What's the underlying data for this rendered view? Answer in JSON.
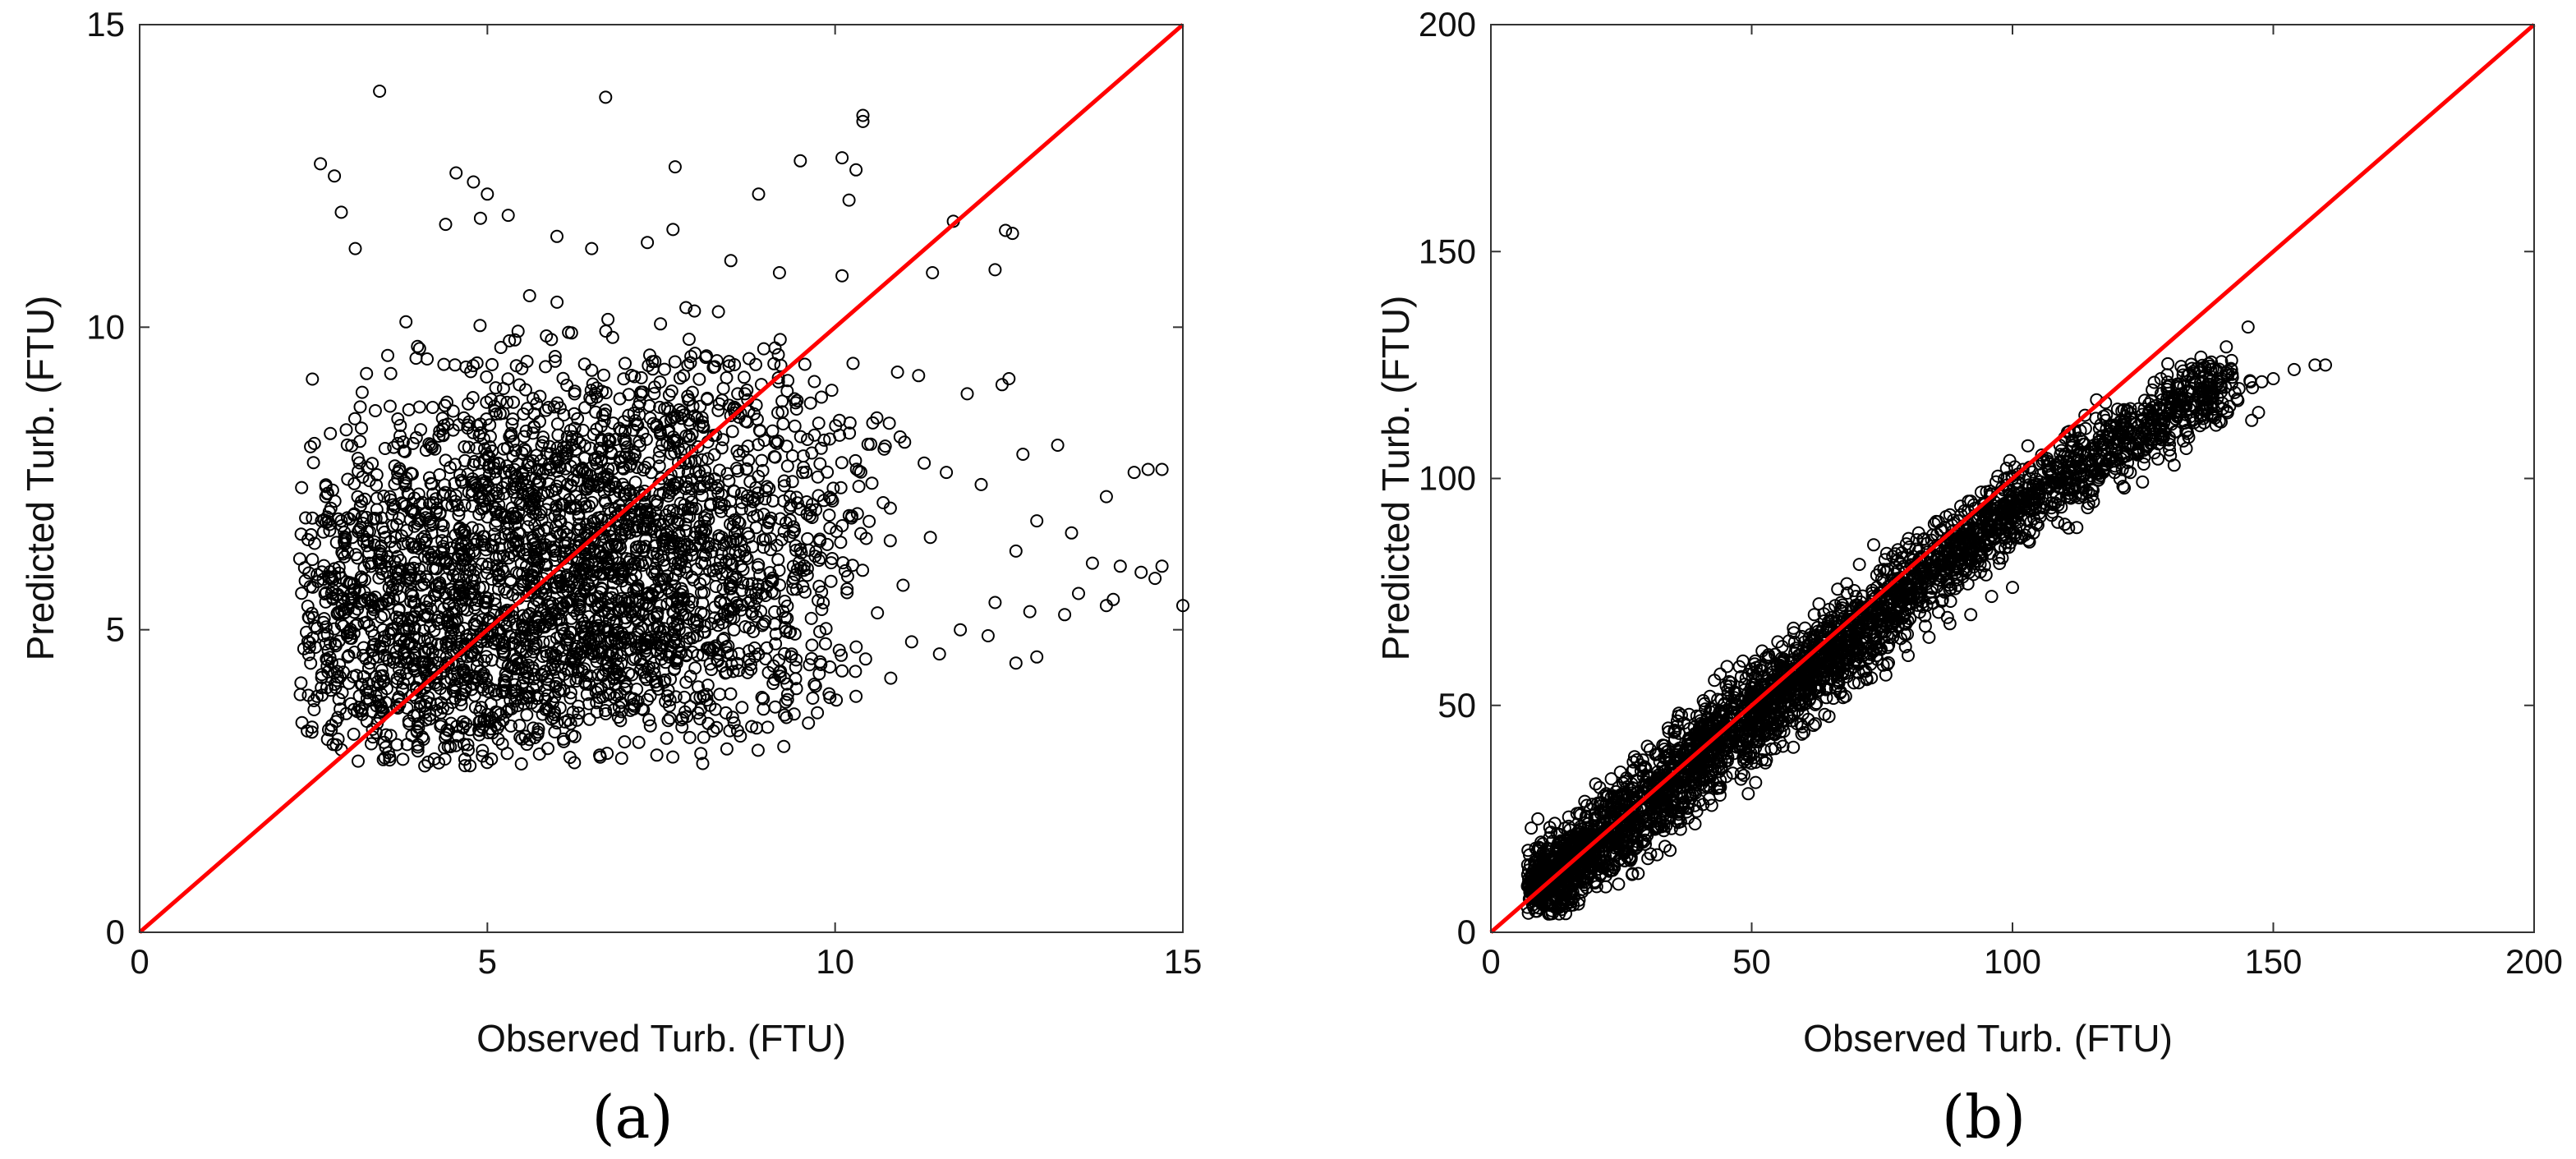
{
  "chart_data": [
    {
      "type": "scatter",
      "panel_label": "(a)",
      "xlabel": "Observed Turb. (FTU)",
      "ylabel": "Predicted Turb. (FTU)",
      "xlim": [
        0,
        15
      ],
      "ylim": [
        0,
        15
      ],
      "xticks": [
        0,
        5,
        10,
        15
      ],
      "yticks": [
        0,
        5,
        10,
        15
      ],
      "grid": false,
      "marker": "open-circle",
      "marker_color": "#000000",
      "reference_line": {
        "x": [
          0,
          15
        ],
        "y": [
          0,
          15
        ],
        "color": "#ff0000"
      },
      "series": [
        {
          "values_description_free": true,
          "core_points": [
            [
              2.5,
              5.2
            ],
            [
              2.7,
              4.5
            ],
            [
              2.9,
              6.8
            ],
            [
              3.0,
              5.5
            ],
            [
              3.2,
              4.1
            ],
            [
              3.3,
              6.1
            ],
            [
              3.5,
              5.0
            ],
            [
              3.6,
              7.2
            ],
            [
              3.8,
              4.6
            ],
            [
              3.9,
              5.9
            ],
            [
              4.0,
              3.1
            ],
            [
              4.1,
              4.3
            ],
            [
              4.2,
              6.6
            ],
            [
              4.3,
              5.1
            ],
            [
              4.4,
              7.8
            ],
            [
              4.5,
              3.8
            ],
            [
              4.6,
              5.6
            ],
            [
              4.7,
              4.9
            ],
            [
              4.8,
              6.3
            ],
            [
              4.9,
              8.4
            ],
            [
              5.0,
              3.5
            ],
            [
              5.1,
              5.3
            ],
            [
              5.2,
              6.9
            ],
            [
              5.3,
              4.4
            ],
            [
              5.4,
              7.4
            ],
            [
              5.5,
              5.8
            ],
            [
              5.6,
              3.9
            ],
            [
              5.7,
              6.2
            ],
            [
              5.8,
              8.1
            ],
            [
              5.9,
              4.8
            ],
            [
              6.0,
              6.6
            ],
            [
              6.1,
              5.4
            ],
            [
              6.2,
              7.7
            ],
            [
              6.3,
              4.2
            ],
            [
              6.4,
              6.0
            ],
            [
              6.5,
              8.8
            ],
            [
              6.6,
              5.0
            ],
            [
              6.7,
              7.1
            ],
            [
              6.8,
              4.6
            ],
            [
              6.9,
              6.4
            ],
            [
              7.0,
              5.7
            ],
            [
              7.1,
              8.3
            ],
            [
              7.2,
              4.5
            ],
            [
              7.3,
              6.8
            ],
            [
              7.4,
              5.2
            ],
            [
              7.5,
              7.5
            ],
            [
              7.6,
              4.0
            ],
            [
              7.7,
              6.1
            ],
            [
              7.8,
              8.6
            ],
            [
              7.9,
              5.5
            ],
            [
              8.0,
              7.0
            ],
            [
              8.2,
              4.7
            ],
            [
              8.4,
              6.4
            ],
            [
              8.6,
              8.9
            ],
            [
              8.8,
              5.3
            ],
            [
              9.0,
              7.3
            ],
            [
              9.2,
              4.3
            ],
            [
              9.4,
              6.7
            ],
            [
              9.6,
              5.9
            ],
            [
              9.8,
              8.0
            ]
          ],
          "outlier_points": [
            [
              3.45,
              13.9
            ],
            [
              6.7,
              13.8
            ],
            [
              10.4,
              13.5
            ],
            [
              10.4,
              13.4
            ],
            [
              2.6,
              12.7
            ],
            [
              2.8,
              12.5
            ],
            [
              4.55,
              12.55
            ],
            [
              7.7,
              12.65
            ],
            [
              9.5,
              12.75
            ],
            [
              10.1,
              12.8
            ],
            [
              10.3,
              12.6
            ],
            [
              4.8,
              12.4
            ],
            [
              5.0,
              12.2
            ],
            [
              8.9,
              12.2
            ],
            [
              10.2,
              12.1
            ],
            [
              2.9,
              11.9
            ],
            [
              3.1,
              11.3
            ],
            [
              4.4,
              11.7
            ],
            [
              4.9,
              11.8
            ],
            [
              5.3,
              11.85
            ],
            [
              6.0,
              11.5
            ],
            [
              6.5,
              11.3
            ],
            [
              7.3,
              11.4
            ],
            [
              8.5,
              11.1
            ],
            [
              9.2,
              10.9
            ],
            [
              11.7,
              11.75
            ],
            [
              12.45,
              11.6
            ],
            [
              12.55,
              11.55
            ],
            [
              12.3,
              10.95
            ],
            [
              11.4,
              10.9
            ],
            [
              10.1,
              10.85
            ],
            [
              12.5,
              9.15
            ],
            [
              12.4,
              9.05
            ],
            [
              11.9,
              8.9
            ],
            [
              11.2,
              9.2
            ],
            [
              10.6,
              8.5
            ],
            [
              11.0,
              8.1
            ],
            [
              13.2,
              8.05
            ],
            [
              12.7,
              7.9
            ],
            [
              14.3,
              7.6
            ],
            [
              14.5,
              7.65
            ],
            [
              14.7,
              7.65
            ],
            [
              13.9,
              7.2
            ],
            [
              11.6,
              7.6
            ],
            [
              12.1,
              7.4
            ],
            [
              12.9,
              6.8
            ],
            [
              13.4,
              6.6
            ],
            [
              12.6,
              6.3
            ],
            [
              13.7,
              6.1
            ],
            [
              14.1,
              6.05
            ],
            [
              14.4,
              5.95
            ],
            [
              14.7,
              6.05
            ],
            [
              13.5,
              5.6
            ],
            [
              14.0,
              5.5
            ],
            [
              14.6,
              5.85
            ],
            [
              15.0,
              5.4
            ],
            [
              12.3,
              5.45
            ],
            [
              12.8,
              5.3
            ],
            [
              13.3,
              5.25
            ],
            [
              13.9,
              5.4
            ],
            [
              11.8,
              5.0
            ],
            [
              12.2,
              4.9
            ],
            [
              12.6,
              4.45
            ],
            [
              12.9,
              4.55
            ],
            [
              11.5,
              4.6
            ],
            [
              11.1,
              4.8
            ],
            [
              10.8,
              4.2
            ],
            [
              10.3,
              3.9
            ],
            [
              9.7,
              4.1
            ],
            [
              9.3,
              3.55
            ],
            [
              8.8,
              3.4
            ],
            [
              8.2,
              3.75
            ],
            [
              7.6,
              3.5
            ],
            [
              4.1,
              2.75
            ],
            [
              4.3,
              2.8
            ],
            [
              3.7,
              3.1
            ],
            [
              3.4,
              3.3
            ],
            [
              3.2,
              3.6
            ],
            [
              2.85,
              3.55
            ],
            [
              2.75,
              4.0
            ]
          ]
        }
      ]
    },
    {
      "type": "scatter",
      "panel_label": "(b)",
      "xlabel": "Observed Turb. (FTU)",
      "ylabel": "Predicted Turb. (FTU)",
      "xlim": [
        0,
        200
      ],
      "ylim": [
        0,
        200
      ],
      "xticks": [
        0,
        50,
        100,
        150,
        200
      ],
      "yticks": [
        0,
        50,
        100,
        150,
        200
      ],
      "grid": false,
      "marker": "open-circle",
      "marker_color": "#000000",
      "reference_line": {
        "x": [
          0,
          200
        ],
        "y": [
          0,
          200
        ],
        "color": "#ff0000"
      },
      "series": [
        {
          "values_description_free": true,
          "core_points": [
            [
              8,
              6
            ],
            [
              9,
              9
            ],
            [
              10,
              8
            ],
            [
              11,
              12
            ],
            [
              12,
              10
            ],
            [
              14,
              13
            ],
            [
              15,
              16
            ],
            [
              17,
              15
            ],
            [
              18,
              19
            ],
            [
              20,
              18
            ],
            [
              22,
              22
            ],
            [
              24,
              21
            ],
            [
              26,
              26
            ],
            [
              28,
              25
            ],
            [
              30,
              30
            ],
            [
              32,
              29
            ],
            [
              34,
              34
            ],
            [
              36,
              33
            ],
            [
              38,
              38
            ],
            [
              40,
              37
            ],
            [
              42,
              42
            ],
            [
              44,
              41
            ],
            [
              46,
              46
            ],
            [
              48,
              44
            ],
            [
              50,
              50
            ],
            [
              52,
              48
            ],
            [
              54,
              53
            ],
            [
              56,
              52
            ],
            [
              58,
              57
            ],
            [
              60,
              55
            ],
            [
              62,
              60
            ],
            [
              64,
              59
            ],
            [
              66,
              63
            ],
            [
              68,
              62
            ],
            [
              70,
              66
            ],
            [
              72,
              68
            ],
            [
              75,
              70
            ],
            [
              78,
              73
            ],
            [
              80,
              76
            ],
            [
              83,
              78
            ],
            [
              86,
              81
            ],
            [
              89,
              84
            ],
            [
              92,
              86
            ],
            [
              95,
              89
            ],
            [
              98,
              91
            ],
            [
              101,
              94
            ],
            [
              104,
              96
            ],
            [
              108,
              99
            ],
            [
              112,
              102
            ],
            [
              116,
              104
            ],
            [
              120,
              108
            ],
            [
              124,
              110
            ],
            [
              128,
              113
            ],
            [
              132,
              116
            ],
            [
              136,
              118
            ],
            [
              140,
              120
            ]
          ],
          "outlier_points": [
            [
              158,
              125
            ],
            [
              160,
              125
            ],
            [
              154,
              124
            ],
            [
              150,
              122
            ],
            [
              146,
              120
            ],
            [
              142,
              126
            ],
            [
              141,
              129
            ],
            [
              138,
              124
            ],
            [
              136,
              121
            ],
            [
              134,
              119
            ],
            [
              130,
              118
            ],
            [
              128,
              114
            ],
            [
              126,
              112
            ],
            [
              122,
              115
            ],
            [
              118,
              114
            ],
            [
              114,
              111
            ],
            [
              110,
              109
            ],
            [
              106,
              104
            ],
            [
              102,
              102
            ],
            [
              98,
              98
            ],
            [
              94,
              97
            ],
            [
              92,
              95
            ],
            [
              88,
              92
            ],
            [
              85,
              90
            ],
            [
              82,
              88
            ],
            [
              78,
              82
            ],
            [
              74,
              76
            ],
            [
              70,
              74
            ],
            [
              66,
              72
            ],
            [
              62,
              70
            ],
            [
              58,
              67
            ],
            [
              55,
              64
            ],
            [
              52,
              62
            ],
            [
              50,
              58
            ],
            [
              46,
              55
            ],
            [
              42,
              52
            ],
            [
              38,
              48
            ],
            [
              34,
              45
            ],
            [
              30,
              41
            ],
            [
              28,
              38
            ],
            [
              26,
              34
            ],
            [
              24,
              31
            ],
            [
              22,
              28
            ],
            [
              20,
              26
            ],
            [
              18,
              23
            ],
            [
              16,
              21
            ],
            [
              14,
              18
            ],
            [
              12,
              16
            ],
            [
              10,
              14
            ],
            [
              9,
              25
            ],
            [
              100,
              76
            ],
            [
              96,
              74
            ],
            [
              92,
              70
            ],
            [
              88,
              68
            ],
            [
              84,
              65
            ],
            [
              80,
              61
            ],
            [
              76,
              59
            ],
            [
              72,
              56
            ],
            [
              68,
              52
            ],
            [
              64,
              48
            ],
            [
              60,
              44
            ],
            [
              56,
              41
            ],
            [
              52,
              38
            ],
            [
              48,
              35
            ],
            [
              44,
              32
            ],
            [
              40,
              29
            ],
            [
              36,
              26
            ],
            [
              32,
              23
            ],
            [
              28,
              20
            ],
            [
              24,
              17
            ]
          ]
        }
      ]
    }
  ]
}
